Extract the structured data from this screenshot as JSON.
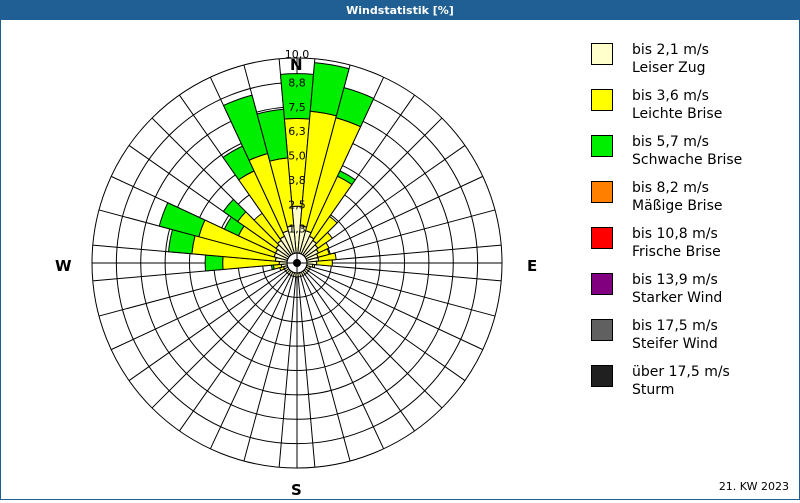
{
  "title": "Windstatistik [%]",
  "footer": "21. KW 2023",
  "directions": {
    "n": "N",
    "e": "E",
    "s": "S",
    "w": "W"
  },
  "legend": [
    {
      "speed": "bis 2,1 m/s",
      "name": "Leiser Zug",
      "color": "#ffffcc"
    },
    {
      "speed": "bis 3,6 m/s",
      "name": "Leichte Brise",
      "color": "#ffff00"
    },
    {
      "speed": "bis 5,7 m/s",
      "name": "Schwache Brise",
      "color": "#00ee00"
    },
    {
      "speed": "bis 8,2 m/s",
      "name": "Mäßige Brise",
      "color": "#ff8000"
    },
    {
      "speed": "bis 10,8 m/s",
      "name": "Frische Brise",
      "color": "#ff0000"
    },
    {
      "speed": "bis 13,9 m/s",
      "name": "Starker Wind",
      "color": "#800080"
    },
    {
      "speed": "bis 17,5 m/s",
      "name": "Steifer Wind",
      "color": "#606060"
    },
    {
      "speed": "über 17,5 m/s",
      "name": "Sturm",
      "color": "#202020"
    }
  ],
  "chart_data": {
    "type": "polar-stacked-bar (wind rose)",
    "title": "Windstatistik [%]",
    "subtitle": "21. KW 2023",
    "unit": "%",
    "radial_max": 10.0,
    "ring_labels": [
      "1,3",
      "2,5",
      "3,8",
      "5,0",
      "6,3",
      "7,5",
      "8,8",
      "10,0"
    ],
    "direction_labels": [
      "N",
      "E",
      "S",
      "W"
    ],
    "sector_step_deg": 10,
    "directions_deg": [
      0,
      10,
      20,
      30,
      40,
      50,
      60,
      70,
      80,
      90,
      100,
      110,
      120,
      130,
      140,
      150,
      160,
      170,
      180,
      190,
      200,
      210,
      220,
      230,
      240,
      250,
      260,
      270,
      280,
      290,
      300,
      310,
      320,
      330,
      340,
      350
    ],
    "series": [
      {
        "name": "bis 2,1 m/s Leiser Zug",
        "color": "#ffffcc",
        "values": [
          2.4,
          1.4,
          1.2,
          1.0,
          0.9,
          0.8,
          0.7,
          0.6,
          0.6,
          0.5,
          0.3,
          0.2,
          0.2,
          0.2,
          0.2,
          0.2,
          0.2,
          0.2,
          0.2,
          0.2,
          0.2,
          0.2,
          0.2,
          0.2,
          0.2,
          0.2,
          0.3,
          0.4,
          0.6,
          0.7,
          0.7,
          0.8,
          0.9,
          1.0,
          1.2,
          1.4
        ]
      },
      {
        "name": "bis 3,6 m/s Leichte Brise",
        "color": "#ffff00",
        "values": [
          4.5,
          5.9,
          6.0,
          3.4,
          1.5,
          0.9,
          0.6,
          0.6,
          0.9,
          0.8,
          0.1,
          0.0,
          0.0,
          0.0,
          0.0,
          0.0,
          0.0,
          0.0,
          0.0,
          0.0,
          0.0,
          0.0,
          0.0,
          0.0,
          0.0,
          0.2,
          0.4,
          2.9,
          4.3,
          4.0,
          2.1,
          2.4,
          1.7,
          3.7,
          4.1,
          3.5
        ]
      },
      {
        "name": "bis 5,7 m/s Schwache Brise",
        "color": "#00ee00",
        "values": [
          2.3,
          2.5,
          1.6,
          0.3,
          0.0,
          0.0,
          0.0,
          0.0,
          0.0,
          0.0,
          0.0,
          0.0,
          0.0,
          0.0,
          0.0,
          0.0,
          0.0,
          0.0,
          0.0,
          0.0,
          0.0,
          0.0,
          0.0,
          0.0,
          0.0,
          0.0,
          0.1,
          0.9,
          1.2,
          2.1,
          0.8,
          0.9,
          0.0,
          1.4,
          3.1,
          2.5
        ]
      },
      {
        "name": "bis 8,2 m/s Mäßige Brise",
        "color": "#ff8000",
        "values": [
          0,
          0,
          0,
          0,
          0,
          0,
          0,
          0,
          0,
          0,
          0,
          0,
          0,
          0,
          0,
          0,
          0,
          0,
          0,
          0,
          0,
          0,
          0,
          0,
          0,
          0,
          0,
          0,
          0,
          0,
          0,
          0,
          0,
          0,
          0,
          0
        ]
      },
      {
        "name": "bis 10,8 m/s Frische Brise",
        "color": "#ff0000",
        "values": [
          0,
          0,
          0,
          0,
          0,
          0,
          0,
          0,
          0,
          0,
          0,
          0,
          0,
          0,
          0,
          0,
          0,
          0,
          0,
          0,
          0,
          0,
          0,
          0,
          0,
          0,
          0,
          0,
          0,
          0,
          0,
          0,
          0,
          0,
          0,
          0
        ]
      },
      {
        "name": "bis 13,9 m/s Starker Wind",
        "color": "#800080",
        "values": [
          0,
          0,
          0,
          0,
          0,
          0,
          0,
          0,
          0,
          0,
          0,
          0,
          0,
          0,
          0,
          0,
          0,
          0,
          0,
          0,
          0,
          0,
          0,
          0,
          0,
          0,
          0,
          0,
          0,
          0,
          0,
          0,
          0,
          0,
          0,
          0
        ]
      },
      {
        "name": "bis 17,5 m/s Steifer Wind",
        "color": "#606060",
        "values": [
          0,
          0,
          0,
          0,
          0,
          0,
          0,
          0,
          0,
          0,
          0,
          0,
          0,
          0,
          0,
          0,
          0,
          0,
          0,
          0,
          0,
          0,
          0,
          0,
          0,
          0,
          0,
          0,
          0,
          0,
          0,
          0,
          0,
          0,
          0,
          0
        ]
      },
      {
        "name": "über 17,5 m/s Sturm",
        "color": "#202020",
        "values": [
          0,
          0,
          0,
          0,
          0,
          0,
          0,
          0,
          0,
          0,
          0,
          0,
          0,
          0,
          0,
          0,
          0,
          0,
          0,
          0,
          0,
          0,
          0,
          0,
          0,
          0,
          0,
          0,
          0,
          0,
          0,
          0,
          0,
          0,
          0,
          0
        ]
      }
    ],
    "grid": true,
    "legend_position": "right"
  }
}
